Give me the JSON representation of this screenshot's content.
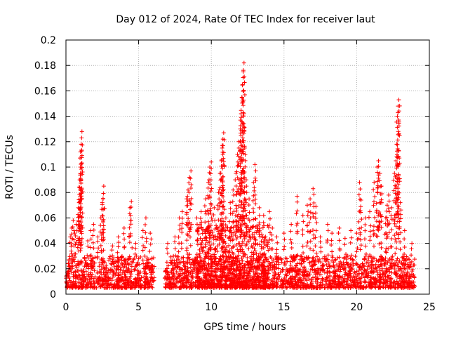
{
  "chart_data": {
    "type": "scatter",
    "title": "Day 012 of 2024, Rate Of TEC Index for receiver laut",
    "xlabel": "GPS time / hours",
    "ylabel": "ROTI / TECUs",
    "xlim": [
      0,
      25
    ],
    "ylim": [
      0,
      0.2
    ],
    "grid": true,
    "marker": "+",
    "x_ticks": [
      0,
      5,
      10,
      15,
      20,
      25
    ],
    "x_tick_labels": [
      "0",
      "5",
      "10",
      "15",
      "20",
      "25"
    ],
    "y_ticks": [
      0,
      0.02,
      0.04,
      0.06,
      0.08,
      0.1,
      0.12,
      0.14,
      0.16,
      0.18,
      0.2
    ],
    "y_tick_labels": [
      "0",
      "0.02",
      "0.04",
      "0.06",
      "0.08",
      "0.1",
      "0.12",
      "0.14",
      "0.16",
      "0.18",
      "0.2"
    ],
    "series": [
      {
        "name": "ROTI",
        "color": "#ff0000",
        "background_envelope": [
          {
            "x_start": 0.0,
            "x_end": 6.1,
            "min": 0.005,
            "max": 0.03
          },
          {
            "x_start": 6.8,
            "x_end": 24.0,
            "min": 0.005,
            "max": 0.03
          },
          {
            "x_start": 9.0,
            "x_end": 14.0,
            "min": 0.005,
            "max": 0.055
          }
        ],
        "points": [
          [
            0.3,
            0.045
          ],
          [
            0.4,
            0.052
          ],
          [
            0.5,
            0.058
          ],
          [
            0.6,
            0.048
          ],
          [
            0.7,
            0.055
          ],
          [
            0.85,
            0.068
          ],
          [
            0.9,
            0.072
          ],
          [
            0.95,
            0.09
          ],
          [
            1.0,
            0.095
          ],
          [
            1.0,
            0.112
          ],
          [
            1.05,
            0.118
          ],
          [
            1.1,
            0.128
          ],
          [
            1.0,
            0.1
          ],
          [
            1.5,
            0.042
          ],
          [
            1.7,
            0.05
          ],
          [
            1.9,
            0.055
          ],
          [
            2.2,
            0.045
          ],
          [
            2.4,
            0.06
          ],
          [
            2.5,
            0.072
          ],
          [
            2.6,
            0.085
          ],
          [
            2.55,
            0.075
          ],
          [
            3.2,
            0.038
          ],
          [
            3.6,
            0.045
          ],
          [
            4.0,
            0.052
          ],
          [
            4.4,
            0.068
          ],
          [
            4.5,
            0.073
          ],
          [
            4.8,
            0.04
          ],
          [
            5.3,
            0.05
          ],
          [
            5.5,
            0.06
          ],
          [
            5.8,
            0.048
          ],
          [
            7.0,
            0.04
          ],
          [
            7.5,
            0.045
          ],
          [
            7.8,
            0.06
          ],
          [
            8.0,
            0.065
          ],
          [
            8.3,
            0.075
          ],
          [
            8.4,
            0.082
          ],
          [
            8.5,
            0.092
          ],
          [
            8.6,
            0.097
          ],
          [
            9.0,
            0.06
          ],
          [
            9.3,
            0.065
          ],
          [
            9.6,
            0.075
          ],
          [
            9.8,
            0.088
          ],
          [
            9.9,
            0.1
          ],
          [
            10.0,
            0.104
          ],
          [
            10.2,
            0.068
          ],
          [
            10.5,
            0.08
          ],
          [
            10.6,
            0.095
          ],
          [
            10.7,
            0.105
          ],
          [
            10.75,
            0.115
          ],
          [
            10.8,
            0.122
          ],
          [
            10.85,
            0.127
          ],
          [
            11.0,
            0.06
          ],
          [
            11.3,
            0.072
          ],
          [
            11.5,
            0.082
          ],
          [
            11.7,
            0.095
          ],
          [
            11.8,
            0.11
          ],
          [
            11.9,
            0.12
          ],
          [
            12.0,
            0.13
          ],
          [
            12.05,
            0.142
          ],
          [
            12.1,
            0.155
          ],
          [
            12.15,
            0.165
          ],
          [
            12.2,
            0.175
          ],
          [
            12.25,
            0.182
          ],
          [
            12.3,
            0.115
          ],
          [
            12.4,
            0.09
          ],
          [
            12.6,
            0.075
          ],
          [
            12.9,
            0.088
          ],
          [
            13.0,
            0.102
          ],
          [
            13.3,
            0.068
          ],
          [
            13.6,
            0.062
          ],
          [
            14.0,
            0.065
          ],
          [
            14.2,
            0.052
          ],
          [
            14.5,
            0.045
          ],
          [
            15.0,
            0.048
          ],
          [
            15.5,
            0.055
          ],
          [
            15.9,
            0.077
          ],
          [
            16.3,
            0.062
          ],
          [
            16.6,
            0.07
          ],
          [
            16.8,
            0.075
          ],
          [
            17.0,
            0.083
          ],
          [
            17.2,
            0.069
          ],
          [
            17.5,
            0.045
          ],
          [
            18.0,
            0.055
          ],
          [
            18.3,
            0.048
          ],
          [
            18.8,
            0.052
          ],
          [
            19.2,
            0.044
          ],
          [
            19.6,
            0.05
          ],
          [
            20.0,
            0.048
          ],
          [
            20.2,
            0.088
          ],
          [
            20.3,
            0.074
          ],
          [
            20.6,
            0.06
          ],
          [
            20.9,
            0.065
          ],
          [
            21.2,
            0.088
          ],
          [
            21.4,
            0.1
          ],
          [
            21.5,
            0.105
          ],
          [
            21.6,
            0.095
          ],
          [
            21.7,
            0.085
          ],
          [
            22.0,
            0.06
          ],
          [
            22.1,
            0.07
          ],
          [
            22.2,
            0.078
          ],
          [
            22.4,
            0.068
          ],
          [
            22.6,
            0.095
          ],
          [
            22.7,
            0.105
          ],
          [
            22.75,
            0.118
          ],
          [
            22.8,
            0.14
          ],
          [
            22.85,
            0.148
          ],
          [
            22.9,
            0.153
          ],
          [
            23.0,
            0.072
          ],
          [
            23.3,
            0.05
          ],
          [
            23.8,
            0.04
          ]
        ]
      }
    ]
  }
}
